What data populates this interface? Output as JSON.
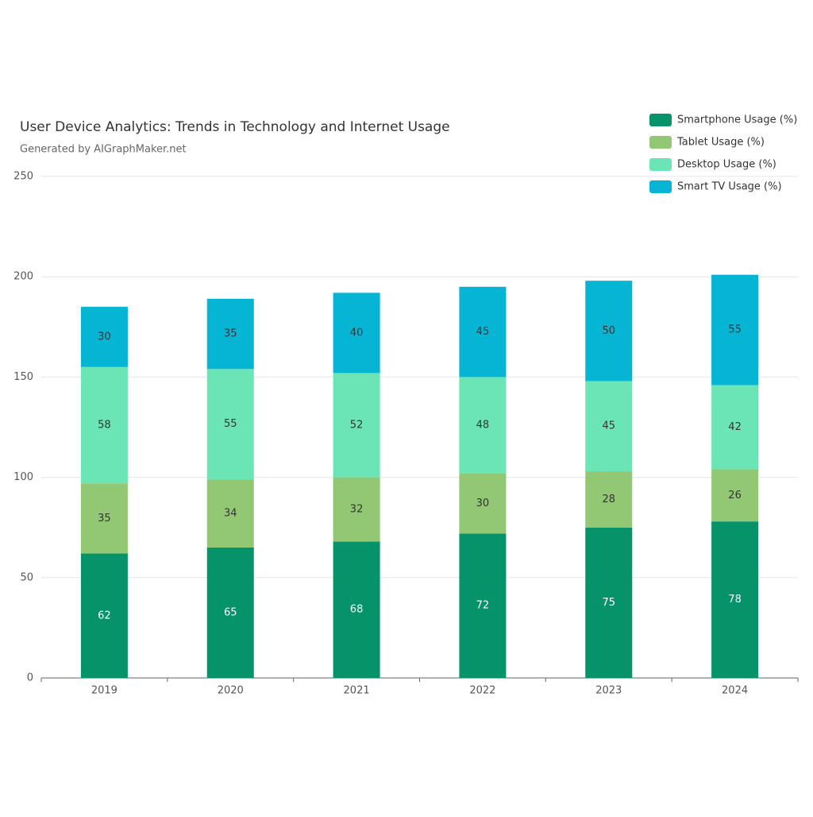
{
  "chart_data": {
    "type": "bar",
    "stacked": true,
    "title": "User Device Analytics: Trends in Technology and Internet Usage",
    "subtitle": "Generated by AIGraphMaker.net",
    "categories": [
      "2019",
      "2020",
      "2021",
      "2022",
      "2023",
      "2024"
    ],
    "series": [
      {
        "name": "Smartphone Usage (%)",
        "color": "#07936a",
        "values": [
          62,
          65,
          68,
          72,
          75,
          78
        ]
      },
      {
        "name": "Tablet Usage (%)",
        "color": "#92c874",
        "values": [
          35,
          34,
          32,
          30,
          28,
          26
        ]
      },
      {
        "name": "Desktop Usage (%)",
        "color": "#6ce5b6",
        "values": [
          58,
          55,
          52,
          48,
          45,
          42
        ]
      },
      {
        "name": "Smart TV Usage (%)",
        "color": "#06b4d4",
        "values": [
          30,
          35,
          40,
          45,
          50,
          55
        ]
      }
    ],
    "ylim": [
      0,
      250
    ],
    "yticks": [
      0,
      50,
      100,
      150,
      200,
      250
    ],
    "grid": true,
    "legend": "top-right"
  }
}
